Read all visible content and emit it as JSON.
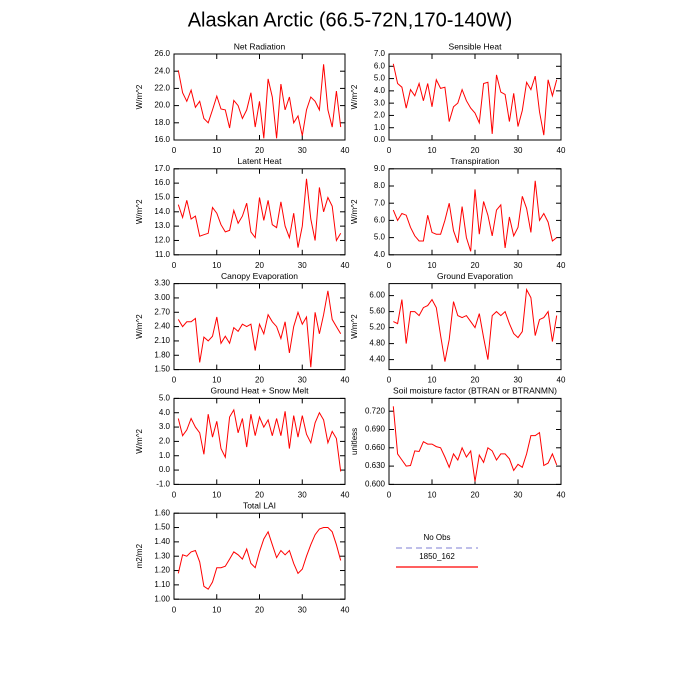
{
  "title": "Alaskan Arctic (66.5-72N,170-140W)",
  "legend": [
    {
      "label": "No Obs",
      "color": "#9999dd",
      "dashed": true
    },
    {
      "label": "1850_162",
      "color": "#ff0000",
      "dashed": false
    }
  ],
  "chart_data": [
    {
      "type": "line",
      "title": "Net Radiation",
      "ylabel": "W/m^2",
      "color": "#ff0000",
      "xlim": [
        0,
        40
      ],
      "xticks": [
        0,
        10,
        20,
        30,
        40
      ],
      "ylim": [
        16,
        26
      ],
      "yticks": [
        {
          "value": 16,
          "label": "16.0"
        },
        {
          "value": 18,
          "label": "18.0"
        },
        {
          "value": 20,
          "label": "20.0"
        },
        {
          "value": 22,
          "label": "22.0"
        },
        {
          "value": 24,
          "label": "24.0"
        },
        {
          "value": 26,
          "label": "26.0"
        }
      ],
      "x": [
        1,
        2,
        3,
        4,
        5,
        6,
        7,
        8,
        9,
        10,
        11,
        12,
        13,
        14,
        15,
        16,
        17,
        18,
        19,
        20,
        21,
        22,
        23,
        24,
        25,
        26,
        27,
        28,
        29,
        30,
        31,
        32,
        33,
        34,
        35,
        36,
        37,
        38,
        39
      ],
      "values": [
        24.1,
        21.5,
        20.5,
        21.8,
        19.8,
        20.5,
        18.5,
        18.0,
        19.5,
        21.1,
        19.6,
        19.5,
        17.4,
        20.6,
        20.0,
        18.5,
        19.5,
        21.5,
        17.5,
        20.5,
        16.2,
        23.1,
        21.0,
        16.2,
        22.5,
        19.5,
        21.0,
        18.0,
        18.8,
        16.5,
        19.5,
        21.0,
        20.5,
        19.5,
        24.8,
        19.5,
        17.5,
        21.7,
        17.5
      ]
    },
    {
      "type": "line",
      "title": "Sensible Heat",
      "ylabel": "W/m^2",
      "color": "#ff0000",
      "xlim": [
        0,
        40
      ],
      "xticks": [
        0,
        10,
        20,
        30,
        40
      ],
      "ylim": [
        0,
        7
      ],
      "yticks": [
        {
          "value": 0,
          "label": "0.0"
        },
        {
          "value": 1,
          "label": "1.0"
        },
        {
          "value": 2,
          "label": "2.0"
        },
        {
          "value": 3,
          "label": "3.0"
        },
        {
          "value": 4,
          "label": "4.0"
        },
        {
          "value": 5,
          "label": "5.0"
        },
        {
          "value": 6,
          "label": "6.0"
        },
        {
          "value": 7,
          "label": "7.0"
        }
      ],
      "x": [
        1,
        2,
        3,
        4,
        5,
        6,
        7,
        8,
        9,
        10,
        11,
        12,
        13,
        14,
        15,
        16,
        17,
        18,
        19,
        20,
        21,
        22,
        23,
        24,
        25,
        26,
        27,
        28,
        29,
        30,
        31,
        32,
        33,
        34,
        35,
        36,
        37,
        38,
        39
      ],
      "values": [
        6.2,
        4.6,
        4.3,
        2.6,
        4.1,
        3.6,
        4.6,
        3.2,
        4.6,
        2.7,
        4.9,
        4.2,
        4.3,
        1.5,
        2.7,
        3.0,
        4.1,
        3.2,
        2.6,
        2.2,
        1.4,
        4.6,
        4.7,
        0.5,
        5.3,
        3.9,
        3.7,
        1.5,
        3.8,
        1.1,
        2.4,
        4.7,
        4.1,
        5.2,
        2.3,
        0.4,
        4.9,
        3.6,
        4.9
      ]
    },
    {
      "type": "line",
      "title": "Latent Heat",
      "ylabel": "W/m^2",
      "color": "#ff0000",
      "xlim": [
        0,
        40
      ],
      "xticks": [
        0,
        10,
        20,
        30,
        40
      ],
      "ylim": [
        11,
        17
      ],
      "yticks": [
        {
          "value": 11,
          "label": "11.0"
        },
        {
          "value": 12,
          "label": "12.0"
        },
        {
          "value": 13,
          "label": "13.0"
        },
        {
          "value": 14,
          "label": "14.0"
        },
        {
          "value": 15,
          "label": "15.0"
        },
        {
          "value": 16,
          "label": "16.0"
        },
        {
          "value": 17,
          "label": "17.0"
        }
      ],
      "x": [
        1,
        2,
        3,
        4,
        5,
        6,
        7,
        8,
        9,
        10,
        11,
        12,
        13,
        14,
        15,
        16,
        17,
        18,
        19,
        20,
        21,
        22,
        23,
        24,
        25,
        26,
        27,
        28,
        29,
        30,
        31,
        32,
        33,
        34,
        35,
        36,
        37,
        38,
        39
      ],
      "values": [
        14.5,
        13.6,
        14.8,
        13.5,
        13.7,
        12.3,
        12.4,
        12.5,
        14.3,
        13.9,
        13.1,
        12.6,
        12.7,
        14.1,
        13.2,
        13.7,
        14.6,
        12.6,
        12.2,
        15.0,
        13.4,
        14.8,
        13.1,
        12.9,
        14.7,
        13.0,
        12.2,
        13.9,
        11.5,
        13.0,
        16.3,
        13.5,
        12.0,
        15.7,
        14.0,
        15.0,
        14.4,
        12.0,
        12.5
      ]
    },
    {
      "type": "line",
      "title": "Transpiration",
      "ylabel": "W/m^2",
      "color": "#ff0000",
      "xlim": [
        0,
        40
      ],
      "xticks": [
        0,
        10,
        20,
        30,
        40
      ],
      "ylim": [
        4,
        9
      ],
      "yticks": [
        {
          "value": 4,
          "label": "4.0"
        },
        {
          "value": 5,
          "label": "5.0"
        },
        {
          "value": 6,
          "label": "6.0"
        },
        {
          "value": 7,
          "label": "7.0"
        },
        {
          "value": 8,
          "label": "8.0"
        },
        {
          "value": 9,
          "label": "9.0"
        }
      ],
      "x": [
        1,
        2,
        3,
        4,
        5,
        6,
        7,
        8,
        9,
        10,
        11,
        12,
        13,
        14,
        15,
        16,
        17,
        18,
        19,
        20,
        21,
        22,
        23,
        24,
        25,
        26,
        27,
        28,
        29,
        30,
        31,
        32,
        33,
        34,
        35,
        36,
        37,
        38,
        39
      ],
      "values": [
        6.6,
        6.0,
        6.4,
        6.3,
        5.6,
        5.1,
        4.8,
        4.8,
        6.3,
        5.3,
        5.2,
        5.2,
        6.0,
        7.0,
        5.4,
        4.7,
        6.8,
        5.0,
        4.2,
        7.8,
        5.2,
        7.1,
        6.3,
        5.1,
        6.6,
        6.9,
        4.4,
        6.2,
        5.1,
        5.6,
        7.4,
        6.7,
        5.3,
        8.3,
        6.0,
        6.4,
        5.9,
        4.8,
        5.0
      ]
    },
    {
      "type": "line",
      "title": "Canopy Evaporation",
      "ylabel": "W/m^2",
      "color": "#ff0000",
      "xlim": [
        0,
        40
      ],
      "xticks": [
        0,
        10,
        20,
        30,
        40
      ],
      "ylim": [
        1.5,
        3.3
      ],
      "yticks": [
        {
          "value": 1.5,
          "label": "1.50"
        },
        {
          "value": 1.8,
          "label": "1.80"
        },
        {
          "value": 2.1,
          "label": "2.10"
        },
        {
          "value": 2.4,
          "label": "2.40"
        },
        {
          "value": 2.7,
          "label": "2.70"
        },
        {
          "value": 3.0,
          "label": "3.00"
        },
        {
          "value": 3.3,
          "label": "3.30"
        }
      ],
      "x": [
        1,
        2,
        3,
        4,
        5,
        6,
        7,
        8,
        9,
        10,
        11,
        12,
        13,
        14,
        15,
        16,
        17,
        18,
        19,
        20,
        21,
        22,
        23,
        24,
        25,
        26,
        27,
        28,
        29,
        30,
        31,
        32,
        33,
        34,
        35,
        36,
        37,
        38,
        39
      ],
      "values": [
        2.55,
        2.4,
        2.5,
        2.5,
        2.57,
        1.65,
        2.18,
        2.1,
        2.2,
        2.6,
        2.05,
        2.2,
        2.05,
        2.38,
        2.3,
        2.45,
        2.4,
        2.45,
        1.9,
        2.45,
        2.25,
        2.65,
        2.5,
        2.4,
        2.15,
        2.5,
        1.85,
        2.4,
        2.7,
        2.45,
        2.6,
        1.55,
        2.7,
        2.25,
        2.65,
        3.15,
        2.55,
        2.4,
        2.25
      ]
    },
    {
      "type": "line",
      "title": "Ground Evaporation",
      "ylabel": "W/m^2",
      "color": "#ff0000",
      "xlim": [
        0,
        40
      ],
      "xticks": [
        0,
        10,
        20,
        30,
        40
      ],
      "ylim": [
        4.15,
        6.3
      ],
      "yticks": [
        {
          "value": 4.4,
          "label": "4.40"
        },
        {
          "value": 4.8,
          "label": "4.80"
        },
        {
          "value": 5.2,
          "label": "5.20"
        },
        {
          "value": 5.6,
          "label": "5.60"
        },
        {
          "value": 6.0,
          "label": "6.00"
        }
      ],
      "x": [
        1,
        2,
        3,
        4,
        5,
        6,
        7,
        8,
        9,
        10,
        11,
        12,
        13,
        14,
        15,
        16,
        17,
        18,
        19,
        20,
        21,
        22,
        23,
        24,
        25,
        26,
        27,
        28,
        29,
        30,
        31,
        32,
        33,
        34,
        35,
        36,
        37,
        38,
        39
      ],
      "values": [
        5.35,
        5.3,
        5.9,
        4.8,
        5.6,
        5.6,
        5.5,
        5.7,
        5.75,
        5.9,
        5.7,
        5.0,
        4.35,
        4.9,
        5.85,
        5.5,
        5.45,
        5.5,
        5.35,
        5.2,
        5.55,
        4.95,
        4.4,
        5.5,
        5.6,
        5.5,
        5.6,
        5.3,
        5.05,
        4.95,
        5.1,
        6.15,
        5.95,
        5.0,
        5.4,
        5.45,
        5.6,
        4.85,
        5.5
      ]
    },
    {
      "type": "line",
      "title": "Ground Heat + Snow Melt",
      "ylabel": "W/m^2",
      "color": "#ff0000",
      "xlim": [
        0,
        40
      ],
      "xticks": [
        0,
        10,
        20,
        30,
        40
      ],
      "ylim": [
        -1,
        5
      ],
      "yticks": [
        {
          "value": -1,
          "label": "-1.0"
        },
        {
          "value": 0,
          "label": "0.0"
        },
        {
          "value": 1,
          "label": "1.0"
        },
        {
          "value": 2,
          "label": "2.0"
        },
        {
          "value": 3,
          "label": "3.0"
        },
        {
          "value": 4,
          "label": "4.0"
        },
        {
          "value": 5,
          "label": "5.0"
        }
      ],
      "x": [
        1,
        2,
        3,
        4,
        5,
        6,
        7,
        8,
        9,
        10,
        11,
        12,
        13,
        14,
        15,
        16,
        17,
        18,
        19,
        20,
        21,
        22,
        23,
        24,
        25,
        26,
        27,
        28,
        29,
        30,
        31,
        32,
        33,
        34,
        35,
        36,
        37,
        38,
        39
      ],
      "values": [
        3.6,
        2.4,
        2.8,
        3.6,
        3.0,
        2.6,
        1.1,
        3.9,
        2.3,
        3.4,
        1.5,
        0.9,
        3.7,
        4.2,
        2.6,
        3.6,
        1.6,
        3.9,
        2.4,
        3.7,
        3.0,
        3.5,
        2.4,
        3.6,
        2.4,
        4.1,
        1.5,
        3.8,
        2.3,
        3.8,
        2.5,
        1.9,
        3.3,
        4.0,
        3.5,
        1.9,
        2.7,
        2.2,
        -0.1
      ]
    },
    {
      "type": "line",
      "title": "Soil moisture factor (BTRAN or BTRANMN)",
      "ylabel": "unitless",
      "color": "#ff0000",
      "xlim": [
        0,
        40
      ],
      "xticks": [
        0,
        10,
        20,
        30,
        40
      ],
      "ylim": [
        0.6,
        0.741
      ],
      "yticks": [
        {
          "value": 0.6,
          "label": "0.600"
        },
        {
          "value": 0.63,
          "label": "0.630"
        },
        {
          "value": 0.66,
          "label": "0.660"
        },
        {
          "value": 0.69,
          "label": "0.690"
        },
        {
          "value": 0.72,
          "label": "0.720"
        }
      ],
      "x": [
        1,
        2,
        3,
        4,
        5,
        6,
        7,
        8,
        9,
        10,
        11,
        12,
        13,
        14,
        15,
        16,
        17,
        18,
        19,
        20,
        21,
        22,
        23,
        24,
        25,
        26,
        27,
        28,
        29,
        30,
        31,
        32,
        33,
        34,
        35,
        36,
        37,
        38,
        39
      ],
      "values": [
        0.728,
        0.65,
        0.64,
        0.63,
        0.631,
        0.655,
        0.654,
        0.67,
        0.666,
        0.666,
        0.662,
        0.66,
        0.645,
        0.628,
        0.65,
        0.64,
        0.66,
        0.645,
        0.655,
        0.605,
        0.648,
        0.636,
        0.66,
        0.655,
        0.64,
        0.65,
        0.65,
        0.642,
        0.623,
        0.633,
        0.628,
        0.65,
        0.68,
        0.68,
        0.685,
        0.631,
        0.635,
        0.65,
        0.632
      ]
    },
    {
      "type": "line",
      "title": "Total LAI",
      "ylabel": "m2/m2",
      "color": "#ff0000",
      "xlim": [
        0,
        40
      ],
      "xticks": [
        0,
        10,
        20,
        30,
        40
      ],
      "ylim": [
        1.0,
        1.6
      ],
      "yticks": [
        {
          "value": 1.0,
          "label": "1.00"
        },
        {
          "value": 1.1,
          "label": "1.10"
        },
        {
          "value": 1.2,
          "label": "1.20"
        },
        {
          "value": 1.3,
          "label": "1.30"
        },
        {
          "value": 1.4,
          "label": "1.40"
        },
        {
          "value": 1.5,
          "label": "1.50"
        },
        {
          "value": 1.6,
          "label": "1.60"
        }
      ],
      "x": [
        1,
        2,
        3,
        4,
        5,
        6,
        7,
        8,
        9,
        10,
        11,
        12,
        13,
        14,
        15,
        16,
        17,
        18,
        19,
        20,
        21,
        22,
        23,
        24,
        25,
        26,
        27,
        28,
        29,
        30,
        31,
        32,
        33,
        34,
        35,
        36,
        37,
        38,
        39
      ],
      "values": [
        1.18,
        1.31,
        1.3,
        1.33,
        1.34,
        1.26,
        1.09,
        1.07,
        1.12,
        1.22,
        1.22,
        1.23,
        1.28,
        1.33,
        1.31,
        1.28,
        1.35,
        1.25,
        1.22,
        1.33,
        1.42,
        1.47,
        1.38,
        1.29,
        1.34,
        1.31,
        1.34,
        1.25,
        1.18,
        1.21,
        1.3,
        1.38,
        1.45,
        1.49,
        1.5,
        1.5,
        1.47,
        1.38,
        1.27
      ]
    }
  ]
}
